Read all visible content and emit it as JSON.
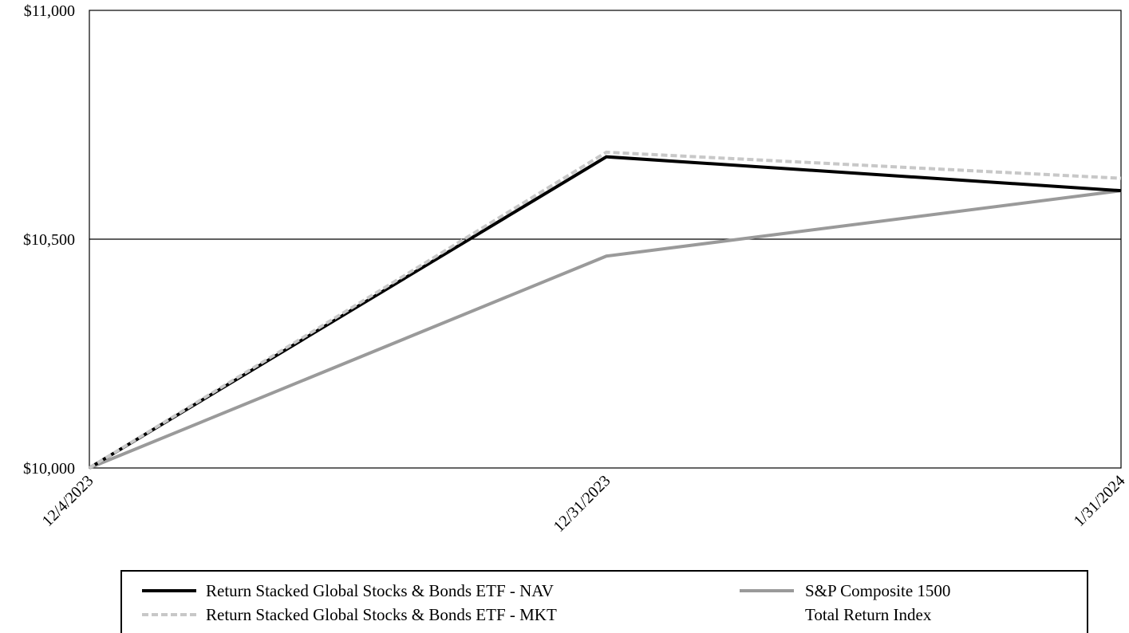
{
  "chart_data": {
    "type": "line",
    "title": "",
    "xlabel": "",
    "ylabel": "",
    "x": [
      "12/4/2023",
      "12/31/2023",
      "1/31/2024"
    ],
    "ylim": [
      10000,
      11000
    ],
    "yticks": [
      10000,
      10500,
      11000
    ],
    "ytick_labels": [
      "$10,000",
      "$10,500",
      "$11,000"
    ],
    "grid": "horizontal gridline at $10,500",
    "legend_position": "bottom",
    "series": [
      {
        "name": "Return Stacked Global Stocks & Bonds ETF - NAV",
        "values": [
          10000,
          10680,
          10606
        ],
        "color": "#000000",
        "style": "solid"
      },
      {
        "name": "Return Stacked Global Stocks & Bonds ETF - MKT",
        "values": [
          10000,
          10690,
          10633
        ],
        "color": "#c8c8c8",
        "style": "dashed"
      },
      {
        "name": "S&P Composite 1500 Total Return Index",
        "values": [
          10000,
          10463,
          10606
        ],
        "color": "#9a9a9a",
        "style": "solid"
      }
    ]
  },
  "legend": {
    "items": [
      {
        "label_lines": [
          "Return Stacked Global Stocks & Bonds ETF - NAV"
        ]
      },
      {
        "label_lines": [
          "Return Stacked Global Stocks & Bonds ETF - MKT"
        ]
      },
      {
        "label_lines": [
          "S&P Composite 1500",
          "Total Return Index"
        ]
      }
    ]
  }
}
